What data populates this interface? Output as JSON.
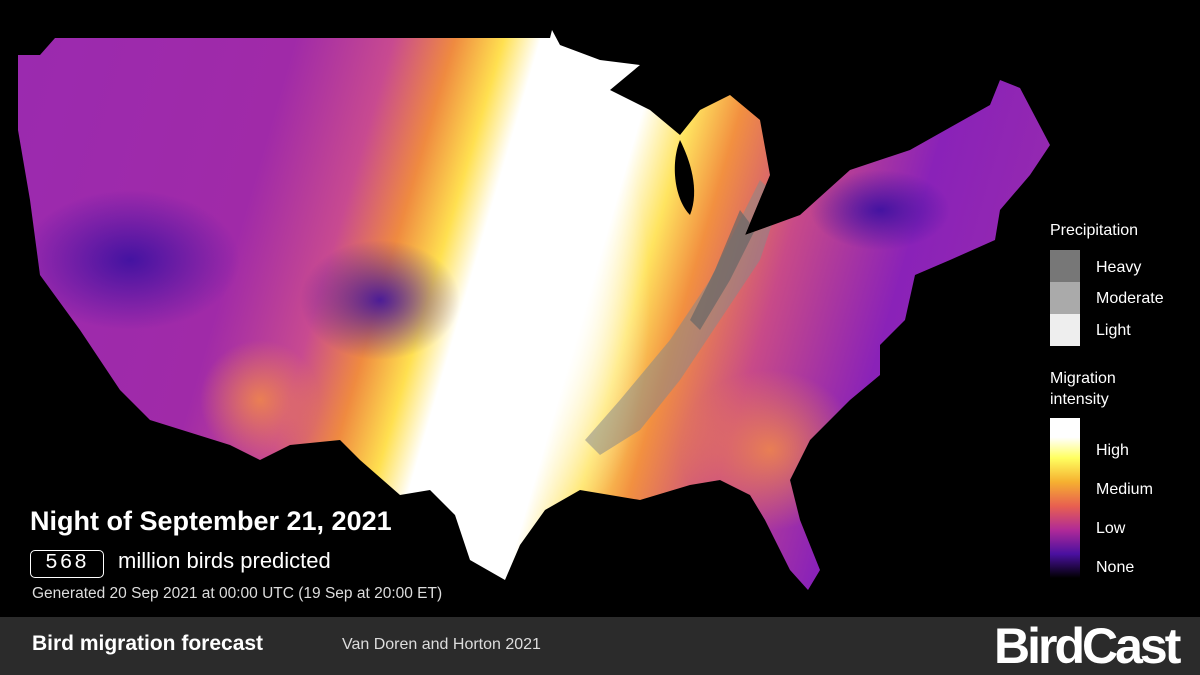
{
  "forecast": {
    "title": "Night of September 21, 2021",
    "count": 568,
    "count_caption": "million birds predicted",
    "generated": "Generated 20 Sep 2021 at 00:00 UTC (19 Sep at 20:00 ET)"
  },
  "legend": {
    "precipitation": {
      "title": "Precipitation",
      "levels": [
        "Heavy",
        "Moderate",
        "Light"
      ]
    },
    "intensity": {
      "title": "Migration intensity",
      "levels": [
        "High",
        "Medium",
        "Low",
        "None"
      ]
    }
  },
  "footer": {
    "title": "Bird migration forecast",
    "credit": "Van Doren and Horton 2021",
    "brand": "BirdCast"
  }
}
